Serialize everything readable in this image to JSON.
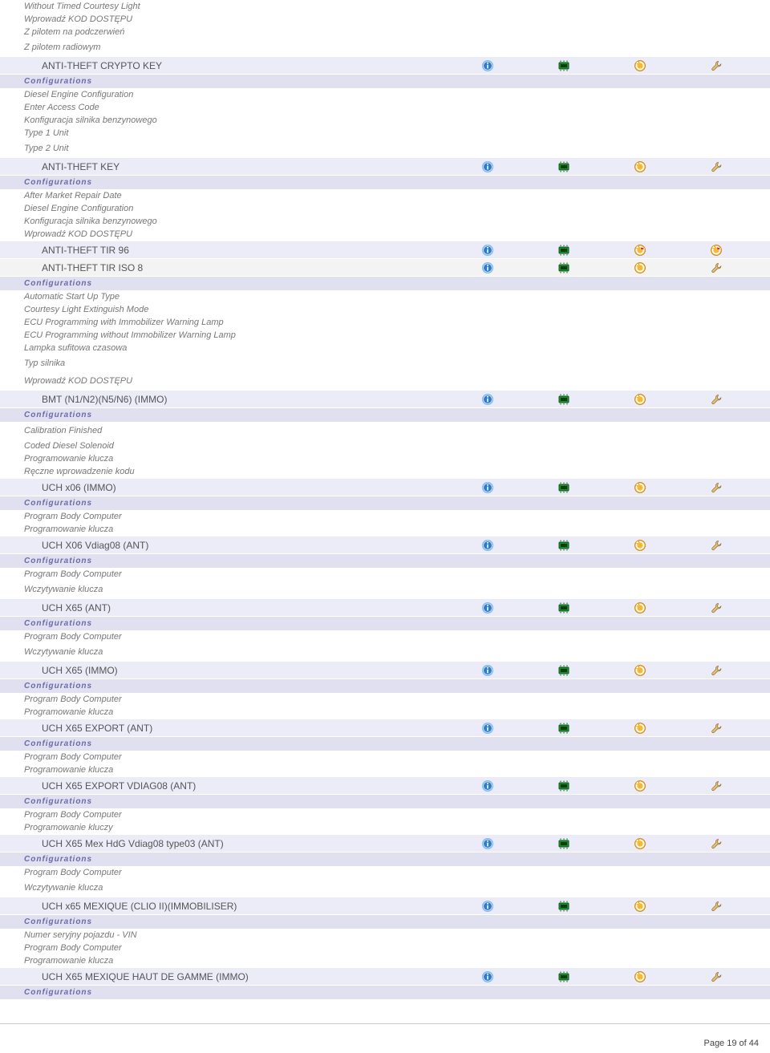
{
  "labels": {
    "configurations": "Configurations"
  },
  "icons": {
    "info_fill": "#2e7bd1",
    "info_ring": "#7fb9ef",
    "chip_fill": "#1e8a2e",
    "chip_border": "#0d5a18",
    "refresh_fill": "#f7b733",
    "refresh_border": "#c47d00",
    "refresh_red_fill": "#f7b733",
    "refresh_red_arrow": "#d11",
    "wrench_fill": "#e8c373",
    "wrench_border": "#8a6a2e"
  },
  "footer": "Page 19 of 44",
  "sections": [
    {
      "preDetails": [
        "Without Timed Courtesy Light",
        "Wprowadź KOD DOSTĘPU",
        "Z pilotem na podczerwień"
      ],
      "spacedDetails": [
        "Z pilotem radiowym"
      ],
      "items": [
        {
          "label": "ANTI-THEFT CRYPTO KEY",
          "alt": false,
          "icons": [
            "info",
            "chip",
            "refresh",
            "wrench"
          ]
        }
      ],
      "config": true,
      "details": [
        "Diesel Engine Configuration",
        "Enter Access Code",
        "Konfiguracja silnika benzynowego",
        "Type 1 Unit"
      ],
      "spacedPost": [
        "Type 2 Unit"
      ]
    },
    {
      "items": [
        {
          "label": "ANTI-THEFT KEY",
          "alt": false,
          "icons": [
            "info",
            "chip",
            "refresh",
            "wrench"
          ]
        }
      ],
      "config": true,
      "details": [
        "After Market Repair Date",
        "Diesel Engine Configuration",
        "Konfiguracja silnika benzynowego",
        "Wprowadź KOD DOSTĘPU"
      ]
    },
    {
      "items": [
        {
          "label": "ANTI-THEFT TIR 96",
          "alt": false,
          "icons": [
            "info",
            "chip",
            "refresh_red",
            "refresh_red"
          ]
        },
        {
          "label": "ANTI-THEFT TIR ISO 8",
          "alt": true,
          "icons": [
            "info",
            "chip",
            "refresh",
            "wrench"
          ]
        }
      ],
      "config": true,
      "details": [
        "Automatic Start Up Type",
        "Courtesy Light Extinguish Mode",
        "ECU Programming with Immobilizer Warning Lamp",
        "ECU Programming without Immobilizer Warning Lamp",
        "Lampka sufitowa czasowa"
      ],
      "spacedPost": [
        "Typ silnika",
        "Wprowadź KOD DOSTĘPU"
      ]
    },
    {
      "items": [
        {
          "label": "BMT (N1/N2)(N5/N6) (IMMO)",
          "alt": false,
          "icons": [
            "info",
            "chip",
            "refresh",
            "wrench"
          ]
        }
      ],
      "config": true,
      "spacedPost": [
        "Calibration Finished"
      ],
      "details2": [
        "Coded Diesel Solenoid",
        "Programowanie klucza",
        "Ręczne wprowadzenie kodu"
      ]
    },
    {
      "items": [
        {
          "label": "UCH x06 (IMMO)",
          "alt": false,
          "icons": [
            "info",
            "chip",
            "refresh",
            "wrench"
          ]
        }
      ],
      "config": true,
      "details": [
        "Program Body Computer",
        "Programowanie klucza"
      ]
    },
    {
      "items": [
        {
          "label": "UCH X06 Vdiag08 (ANT)",
          "alt": false,
          "icons": [
            "info",
            "chip",
            "refresh",
            "wrench"
          ]
        }
      ],
      "config": true,
      "details": [
        "Program Body Computer"
      ],
      "spacedPost": [
        "Wczytywanie klucza"
      ]
    },
    {
      "items": [
        {
          "label": "UCH X65 (ANT)",
          "alt": false,
          "icons": [
            "info",
            "chip",
            "refresh",
            "wrench"
          ]
        }
      ],
      "config": true,
      "details": [
        "Program Body Computer"
      ],
      "spacedPost": [
        "Wczytywanie klucza"
      ]
    },
    {
      "items": [
        {
          "label": "UCH X65 (IMMO)",
          "alt": false,
          "icons": [
            "info",
            "chip",
            "refresh",
            "wrench"
          ]
        }
      ],
      "config": true,
      "details": [
        "Program Body Computer",
        "Programowanie klucza"
      ]
    },
    {
      "items": [
        {
          "label": "UCH X65 EXPORT (ANT)",
          "alt": false,
          "icons": [
            "info",
            "chip",
            "refresh",
            "wrench"
          ]
        }
      ],
      "config": true,
      "details": [
        "Program Body Computer",
        "Programowanie klucza"
      ]
    },
    {
      "items": [
        {
          "label": "UCH X65 EXPORT VDIAG08 (ANT)",
          "alt": false,
          "icons": [
            "info",
            "chip",
            "refresh",
            "wrench"
          ]
        }
      ],
      "config": true,
      "details": [
        "Program Body Computer",
        "Programowanie kluczy"
      ]
    },
    {
      "items": [
        {
          "label": "UCH X65 Mex HdG Vdiag08 type03 (ANT)",
          "alt": false,
          "icons": [
            "info",
            "chip",
            "refresh",
            "wrench"
          ]
        }
      ],
      "config": true,
      "details": [
        "Program Body Computer"
      ],
      "spacedPost": [
        "Wczytywanie klucza"
      ]
    },
    {
      "items": [
        {
          "label": "UCH x65 MEXIQUE (CLIO II)(IMMOBILISER)",
          "alt": false,
          "icons": [
            "info",
            "chip",
            "refresh",
            "wrench"
          ]
        }
      ],
      "config": true,
      "details": [
        "Numer seryjny pojazdu - VIN",
        "Program Body Computer",
        "Programowanie klucza"
      ]
    },
    {
      "items": [
        {
          "label": "UCH X65 MEXIQUE HAUT DE GAMME (IMMO)",
          "alt": false,
          "icons": [
            "info",
            "chip",
            "refresh",
            "wrench"
          ]
        }
      ],
      "config": true
    }
  ]
}
